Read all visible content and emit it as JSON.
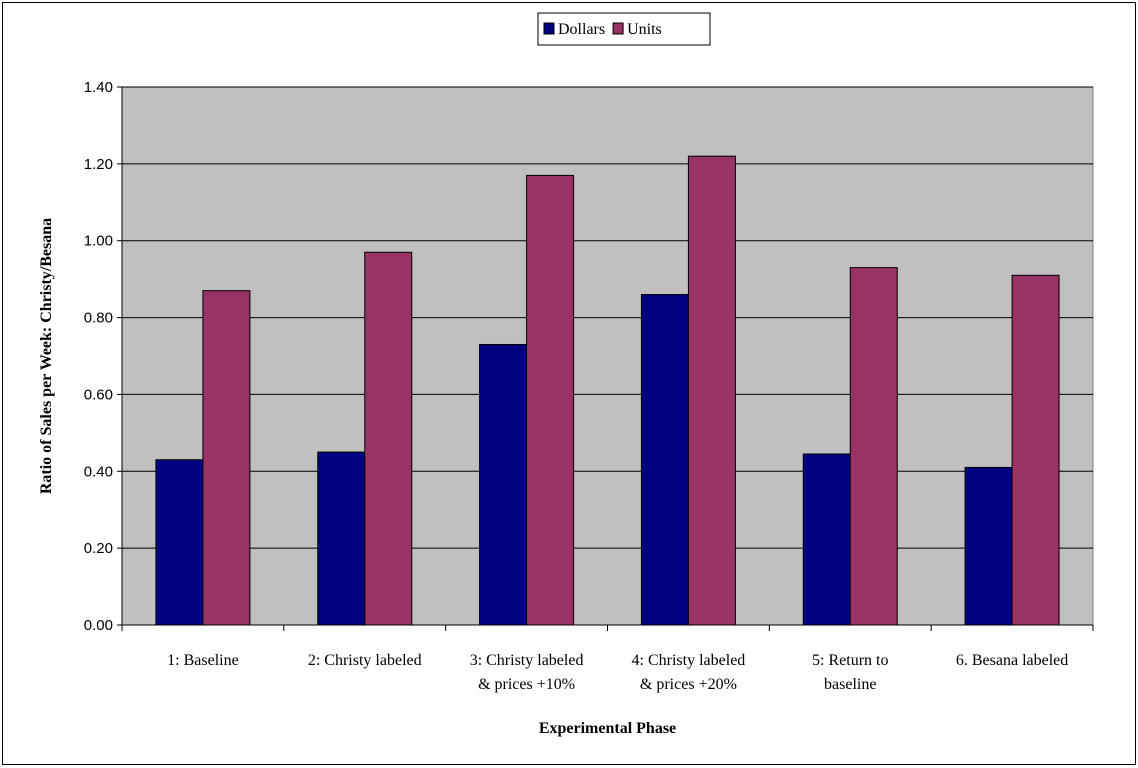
{
  "chart_data": {
    "type": "bar",
    "title": "",
    "xlabel": "Experimental Phase",
    "ylabel": "Ratio of Sales per Week: Christy/Besana",
    "ylim": [
      0,
      1.4
    ],
    "yticks": [
      "0.00",
      "0.20",
      "0.40",
      "0.60",
      "0.80",
      "1.00",
      "1.20",
      "1.40"
    ],
    "grid": true,
    "legend_position": "top-center",
    "categories": [
      [
        "1: Baseline"
      ],
      [
        "2: Christy labeled"
      ],
      [
        "3: Christy labeled",
        "& prices +10%"
      ],
      [
        "4: Christy labeled",
        "& prices +20%"
      ],
      [
        "5: Return to",
        "baseline"
      ],
      [
        "6. Besana labeled"
      ]
    ],
    "series": [
      {
        "name": "Dollars",
        "color": "#000080",
        "values": [
          0.43,
          0.45,
          0.73,
          0.86,
          0.445,
          0.41
        ]
      },
      {
        "name": "Units",
        "color": "#993366",
        "values": [
          0.87,
          0.97,
          1.17,
          1.22,
          0.93,
          0.91
        ]
      }
    ],
    "plot_background": "#c0c0c0"
  }
}
